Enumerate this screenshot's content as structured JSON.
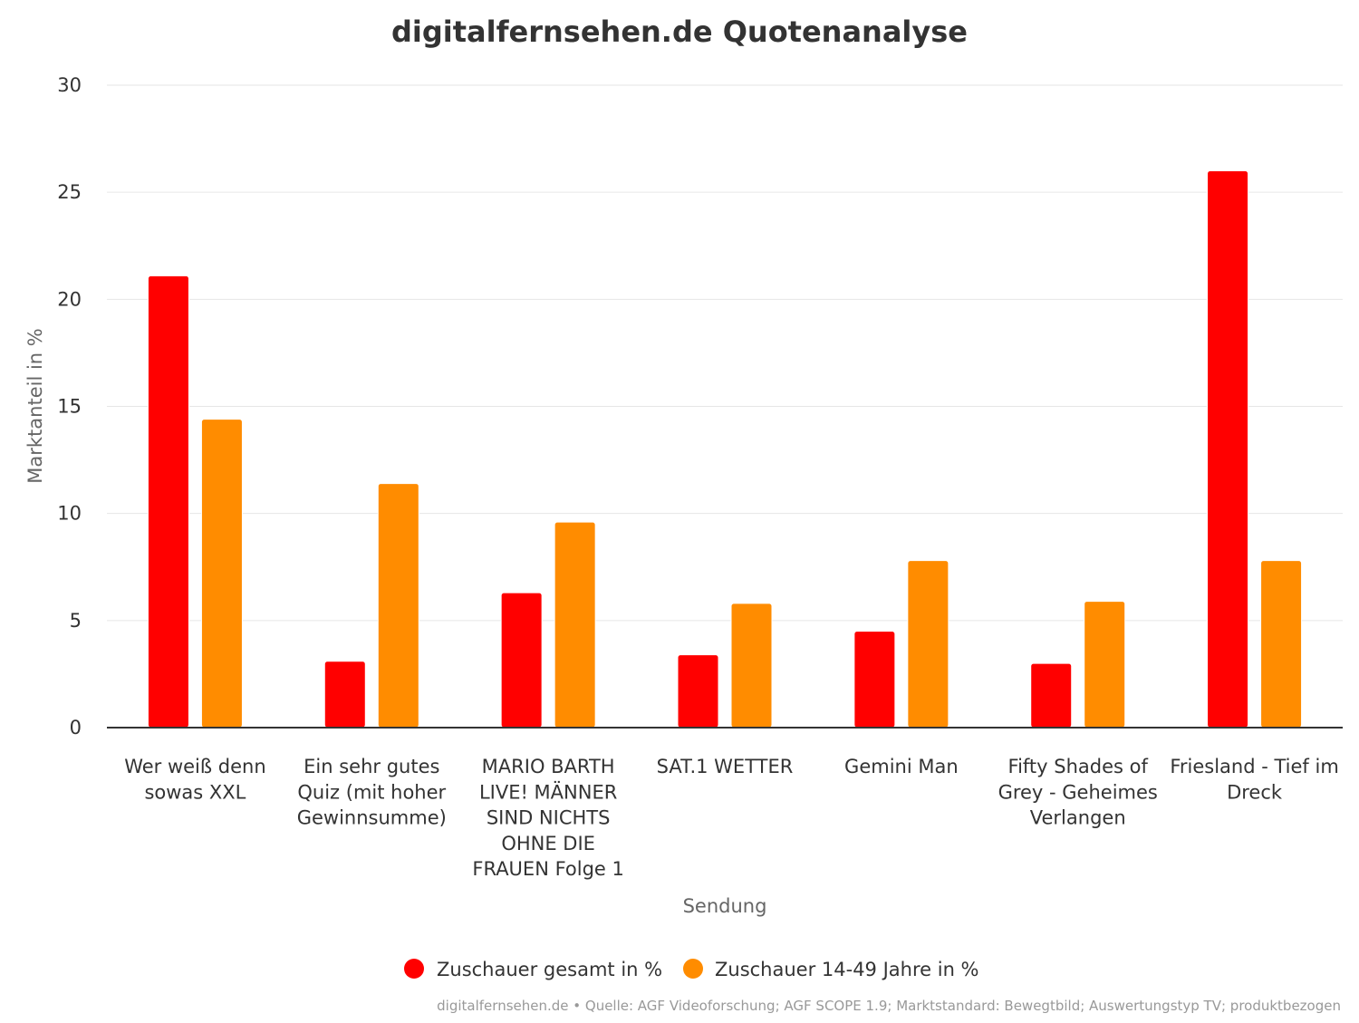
{
  "chart_data": {
    "type": "bar",
    "title": "digitalfernsehen.de Quotenanalyse",
    "xlabel": "Sendung",
    "ylabel": "Marktanteil in %",
    "ylim": [
      0,
      30
    ],
    "yticks": [
      0,
      5,
      10,
      15,
      20,
      25,
      30
    ],
    "grid": true,
    "legend_position": "bottom-center",
    "categories": [
      [
        "Wer weiß denn",
        "sowas XXL"
      ],
      [
        "Ein sehr gutes",
        "Quiz (mit hoher",
        "Gewinnsumme)"
      ],
      [
        "MARIO BARTH",
        "LIVE! MÄNNER",
        "SIND NICHTS",
        "OHNE DIE",
        "FRAUEN Folge 1"
      ],
      [
        "SAT.1 WETTER"
      ],
      [
        "Gemini Man"
      ],
      [
        "Fifty Shades of",
        "Grey - Geheimes",
        "Verlangen"
      ],
      [
        "Friesland - Tief im",
        "Dreck"
      ]
    ],
    "series": [
      {
        "name": "Zuschauer gesamt in %",
        "color": "#ff0000",
        "values": [
          21.1,
          3.1,
          6.3,
          3.4,
          4.5,
          3.0,
          26.0
        ]
      },
      {
        "name": "Zuschauer 14-49 Jahre in %",
        "color": "#ff8c00",
        "values": [
          14.4,
          11.4,
          9.6,
          5.8,
          7.8,
          5.9,
          7.8
        ]
      }
    ],
    "source": "digitalfernsehen.de • Quelle: AGF Videoforschung; AGF SCOPE 1.9; Marktstandard: Bewegtbild; Auswertungstyp TV; produktbezogen"
  }
}
